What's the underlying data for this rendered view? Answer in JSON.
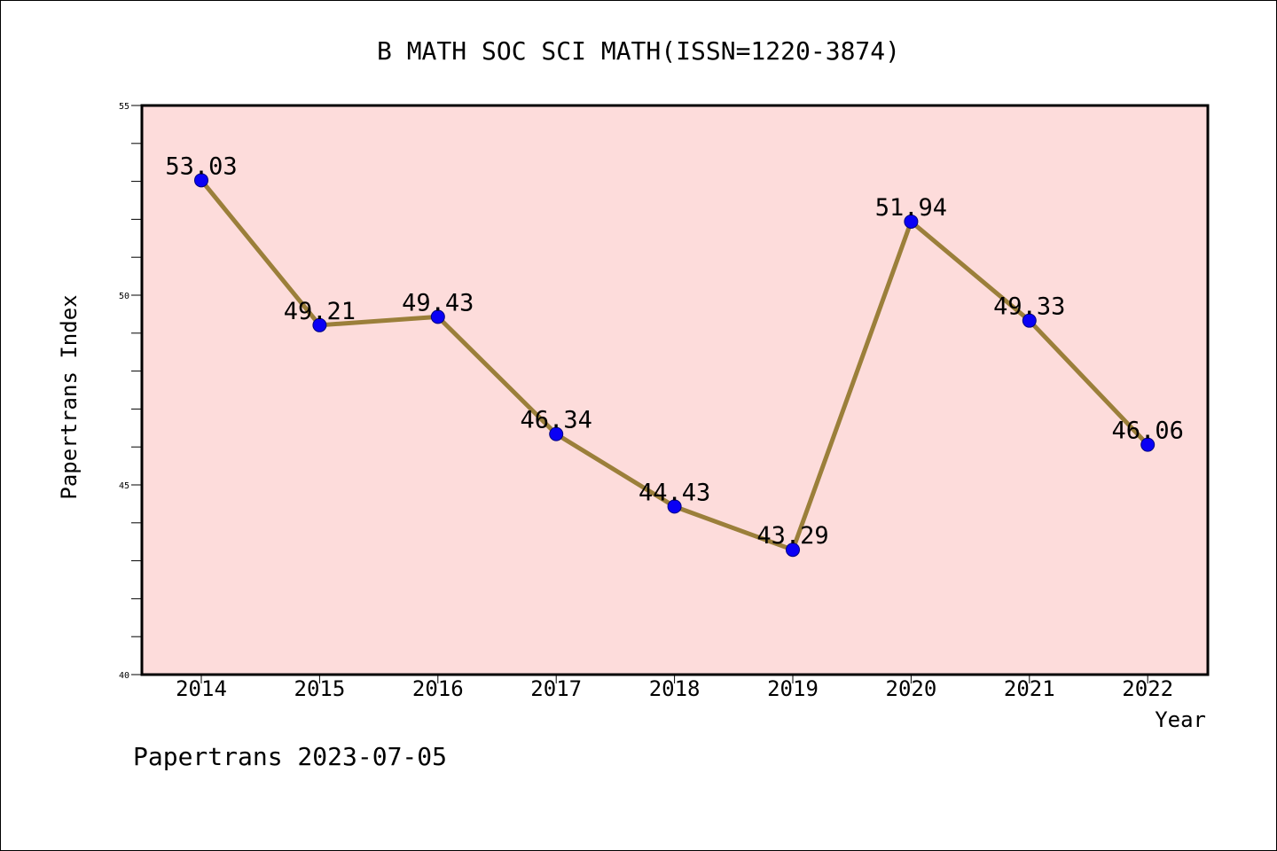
{
  "chart_data": {
    "type": "line",
    "title": "B MATH SOC SCI MATH(ISSN=1220-3874)",
    "xlabel": "Year",
    "ylabel": "Papertrans Index",
    "categories": [
      "2014",
      "2015",
      "2016",
      "2017",
      "2018",
      "2019",
      "2020",
      "2021",
      "2022"
    ],
    "series": [
      {
        "values": [
          53.03,
          49.21,
          49.43,
          46.34,
          44.43,
          43.29,
          51.94,
          49.33,
          46.06
        ],
        "data_labels": [
          "53.03",
          "49.21",
          "49.43",
          "46.34",
          "44.43",
          "43.29",
          "51.94",
          "49.33",
          "46.06"
        ]
      }
    ],
    "ylim": [
      40,
      55
    ],
    "yticks": [
      "40",
      "45",
      "50",
      "55"
    ],
    "grid": false,
    "legend": "none"
  },
  "footer": "Papertrans 2023-07-05",
  "colors": {
    "plot_background": "#fddcdb",
    "line": "#9b7f3a",
    "marker": "#0a00f5",
    "marker_edge": "#000080"
  }
}
